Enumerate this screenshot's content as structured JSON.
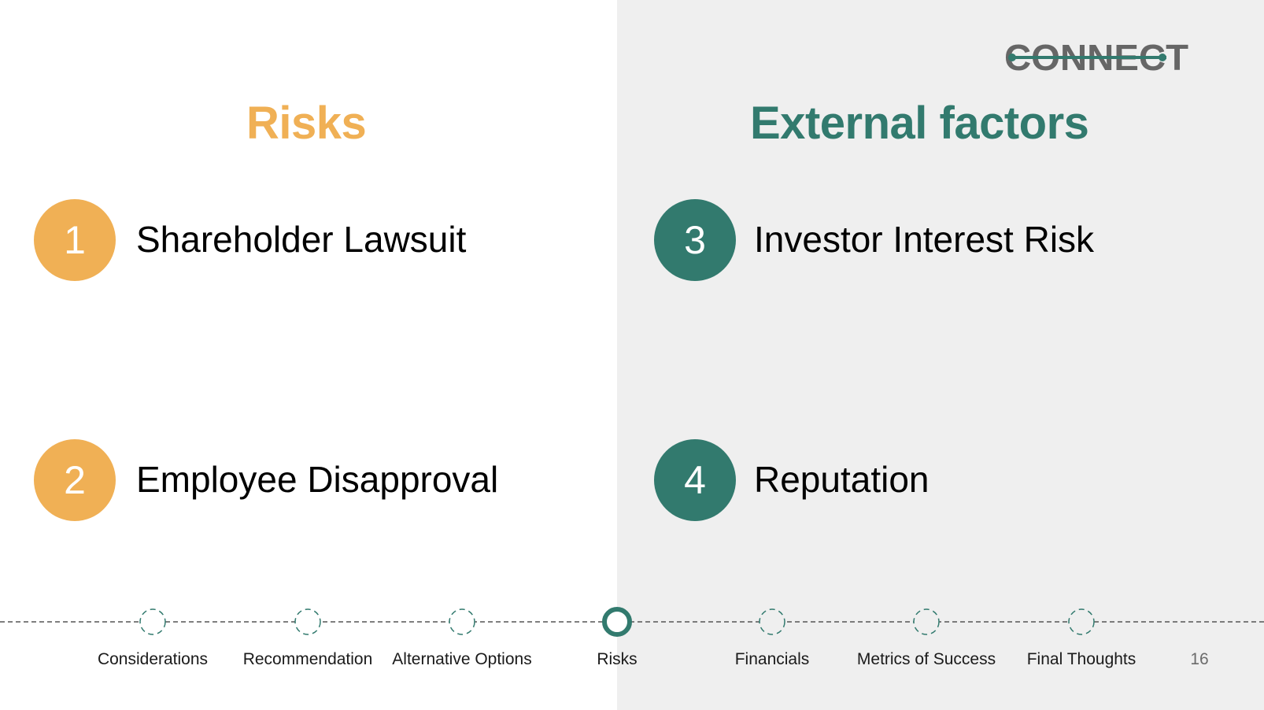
{
  "logo": {
    "text": "CONNECT",
    "text_color": "#666666",
    "accent_color": "#327a6e"
  },
  "headings": {
    "risks": "Risks",
    "external": "External factors"
  },
  "items": [
    {
      "number": "1",
      "label": "Shareholder Lawsuit",
      "color": "#f0b055"
    },
    {
      "number": "2",
      "label": "Employee Disapproval",
      "color": "#f0b055"
    },
    {
      "number": "3",
      "label": "Investor Interest Risk",
      "color": "#327a6e"
    },
    {
      "number": "4",
      "label": "Reputation",
      "color": "#327a6e"
    }
  ],
  "nav": {
    "items": [
      {
        "label": "Considerations",
        "active": false
      },
      {
        "label": "Recommendation",
        "active": false
      },
      {
        "label": "Alternative Options",
        "active": false
      },
      {
        "label": "Risks",
        "active": true
      },
      {
        "label": "Financials",
        "active": false
      },
      {
        "label": "Metrics of Success",
        "active": false
      },
      {
        "label": "Final Thoughts",
        "active": false
      }
    ],
    "page_number": "16"
  },
  "colors": {
    "orange": "#f0b055",
    "teal": "#327a6e",
    "panel_gray": "#efefef"
  }
}
